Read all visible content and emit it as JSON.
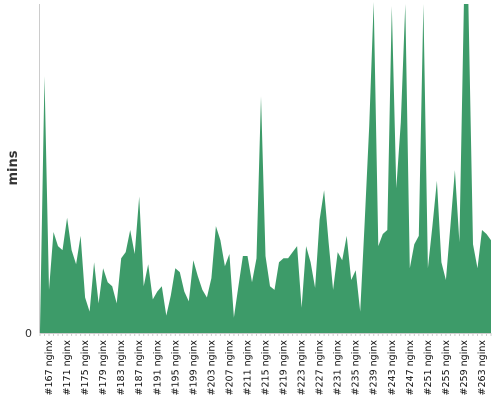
{
  "chart_data": {
    "type": "area",
    "ylabel": "mins",
    "xlabel": "",
    "title": "",
    "y_ticks": [
      "0"
    ],
    "ylim": [
      0,
      100
    ],
    "grid": false,
    "legend": "none",
    "colors": {
      "fill": "#3d9b69",
      "axis": "#cccccc"
    },
    "x_ticks": [
      "#167 nginx",
      "#171 nginx",
      "#175 nginx",
      "#179 nginx",
      "#183 nginx",
      "#187 nginx",
      "#191 nginx",
      "#195 nginx",
      "#199 nginx",
      "#203 nginx",
      "#207 nginx",
      "#211 nginx",
      "#215 nginx",
      "#219 nginx",
      "#223 nginx",
      "#227 nginx",
      "#231 nginx",
      "#235 nginx",
      "#239 nginx",
      "#243 nginx",
      "#247 nginx",
      "#251 nginx",
      "#255 nginx",
      "#259 nginx",
      "#263 nginx"
    ],
    "x_start": 165,
    "x_end": 265,
    "series": [
      {
        "values": [
          1.0,
          78.1,
          13.1,
          30.7,
          26.4,
          25.2,
          35.0,
          25.2,
          20.9,
          29.5,
          10.8,
          6.5,
          21.5,
          9.0,
          19.7,
          15.4,
          14.2,
          9.0,
          22.7,
          24.6,
          31.3,
          24.0,
          41.5,
          14.2,
          20.9,
          10.2,
          12.6,
          14.2,
          5.3,
          11.4,
          19.7,
          18.5,
          12.6,
          9.6,
          22.1,
          17.3,
          13.1,
          10.8,
          16.7,
          32.5,
          28.2,
          20.3,
          24.0,
          4.7,
          14.2,
          23.4,
          23.4,
          15.4,
          22.7,
          71.9,
          23.4,
          14.2,
          13.1,
          21.5,
          22.7,
          22.7,
          24.6,
          26.4,
          7.7,
          26.4,
          21.5,
          13.7,
          34.4,
          43.4,
          27.6,
          13.1,
          24.6,
          22.1,
          29.5,
          16.1,
          19.1,
          6.5,
          33.8,
          62.8,
          100.6,
          26.4,
          30.1,
          31.3,
          99.4,
          44.0,
          64.0,
          100.0,
          19.7,
          27.0,
          29.5,
          100.0,
          19.7,
          32.5,
          46.3,
          21.5,
          16.1,
          32.5,
          49.5,
          27.6,
          100.0,
          100.0,
          27.0,
          19.7,
          31.3,
          30.1,
          28.2
        ]
      }
    ]
  }
}
